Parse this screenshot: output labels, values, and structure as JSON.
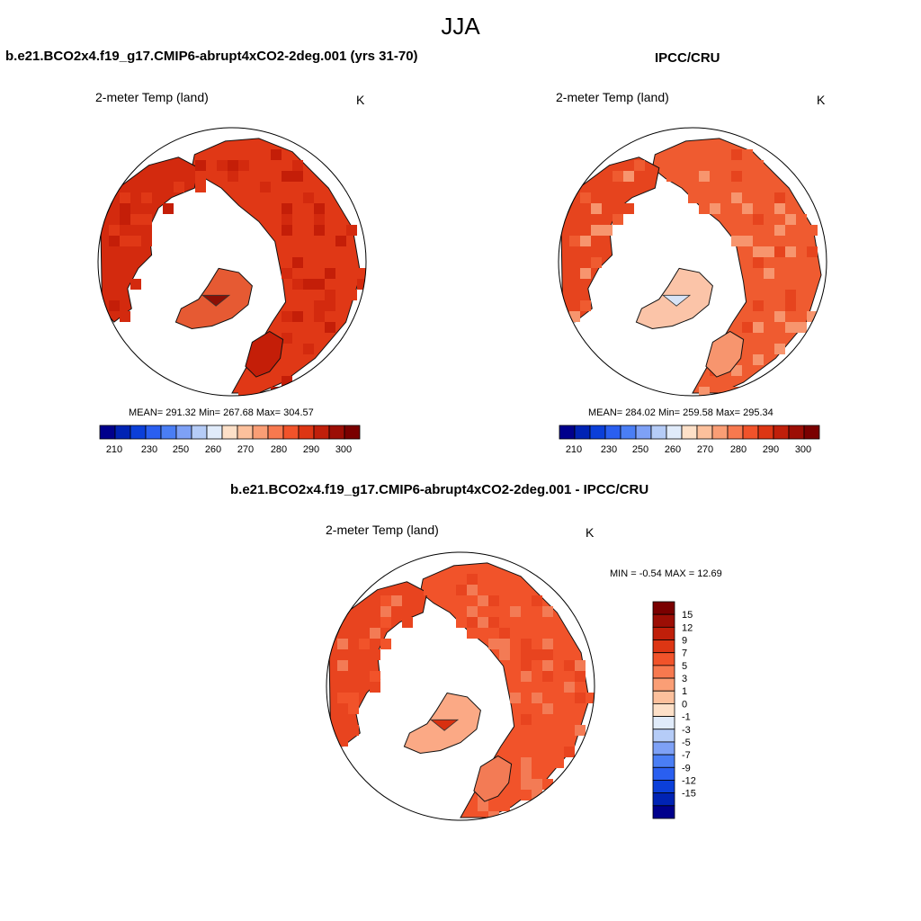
{
  "figure": {
    "title": "JJA",
    "scale_colors": [
      "#00008c",
      "#0023b4",
      "#0b3fd9",
      "#2a5ff0",
      "#4a7ef5",
      "#7ea1f6",
      "#b5ccf7",
      "#e0ebfa",
      "#fde0c8",
      "#fcc09c",
      "#fa9e75",
      "#f7794f",
      "#f1532a",
      "#dd3614",
      "#c01f0a",
      "#9c0e05",
      "#7a0000"
    ]
  },
  "panels": [
    {
      "title": "b.e21.BCO2x4.f19_g17.CMIP6-abrupt4xCO2-2deg.001 (yrs 31-70)",
      "variable": "2-meter Temp (land)",
      "units": "K",
      "stats": "MEAN= 291.32  Min= 267.68  Max= 304.57",
      "fill_colors": [
        "#e03816",
        "#d32a0e",
        "#c41e08",
        "#e65a33",
        "#f08a66",
        "#fbd0bc",
        "#8c0f05"
      ],
      "colorbar": {
        "ticks": [
          "210",
          "230",
          "250",
          "260",
          "270",
          "280",
          "290",
          "300"
        ]
      }
    },
    {
      "title": "IPCC/CRU",
      "variable": "2-meter Temp (land)",
      "units": "K",
      "stats": "MEAN= 284.02  Min= 259.58  Max= 295.34",
      "fill_colors": [
        "#ef5b30",
        "#e6441e",
        "#f7956e",
        "#fbc4a8",
        "#fde4d6",
        "#d8e4f7"
      ],
      "colorbar": {
        "ticks": [
          "210",
          "230",
          "250",
          "260",
          "270",
          "280",
          "290",
          "300"
        ]
      }
    },
    {
      "title": "b.e21.BCO2x4.f19_g17.CMIP6-abrupt4xCO2-2deg.001 - IPCC/CRU",
      "variable": "2-meter Temp (land)",
      "units": "K",
      "stats": "MIN =  -0.54 MAX =  12.69",
      "fill_colors": [
        "#f1532a",
        "#e8441f",
        "#f37b55",
        "#fba985",
        "#fde6d9",
        "#d83010"
      ],
      "colorbar": {
        "ticks": [
          "15",
          "12",
          "9",
          "7",
          "5",
          "3",
          "1",
          "0",
          "-1",
          "-3",
          "-5",
          "-7",
          "-9",
          "-12",
          "-15"
        ]
      }
    }
  ]
}
